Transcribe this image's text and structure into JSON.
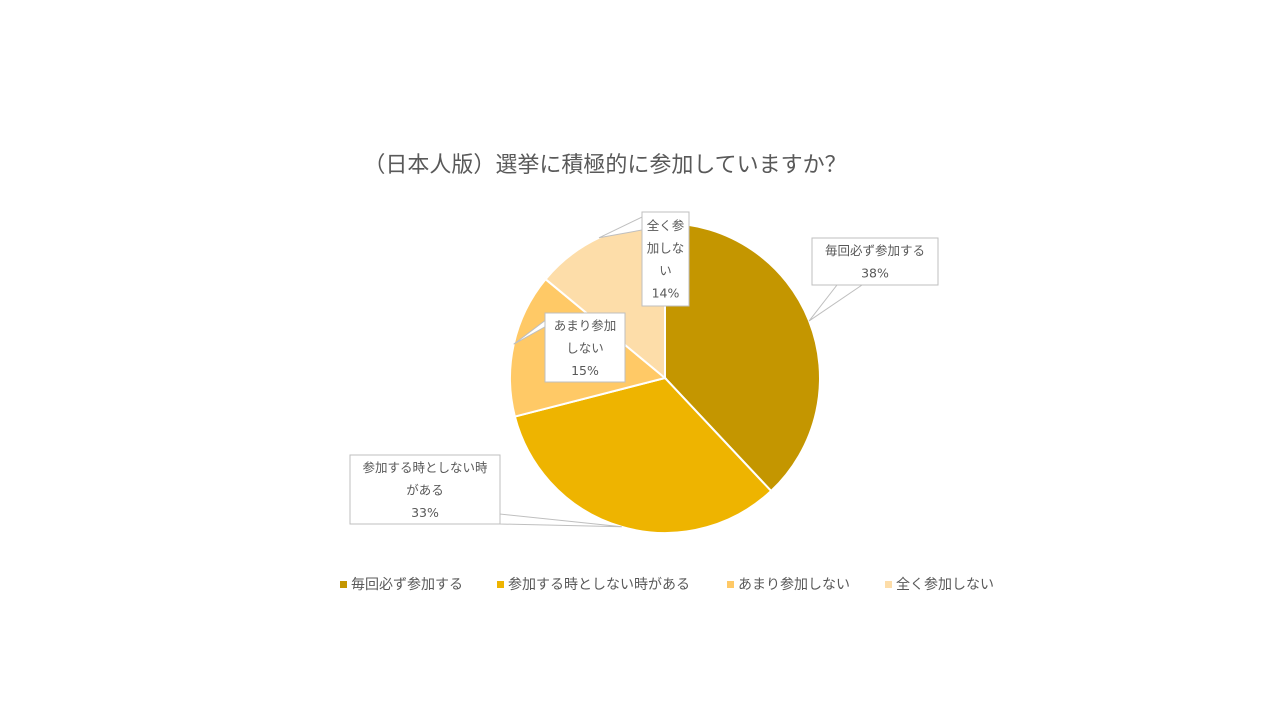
{
  "chart_data": {
    "type": "pie",
    "title": "（日本人版）選挙に積極的に参加していますか？",
    "categories": [
      "毎回必ず参加する",
      "参加する時としない時がある",
      "あまり参加しない",
      "全く参加しない"
    ],
    "values": [
      38,
      33,
      15,
      14
    ],
    "unit": "%",
    "colors": [
      "#C49600",
      "#EEB400",
      "#FFC966",
      "#FDDDA9"
    ],
    "data_labels": [
      {
        "lines": [
          "毎回必ず参加する"
        ],
        "value": "38%"
      },
      {
        "lines": [
          "参加する時としない時",
          "がある"
        ],
        "value": "33%"
      },
      {
        "lines": [
          "あまり参加",
          "しない"
        ],
        "value": "15%"
      },
      {
        "lines": [
          "全く参",
          "加しな",
          "い"
        ],
        "value": "14%"
      }
    ],
    "legend": {
      "placement": "bottom",
      "items": [
        "毎回必ず参加する",
        "参加する時としない時がある",
        "あまり参加しない",
        "全く参加しない"
      ]
    }
  }
}
